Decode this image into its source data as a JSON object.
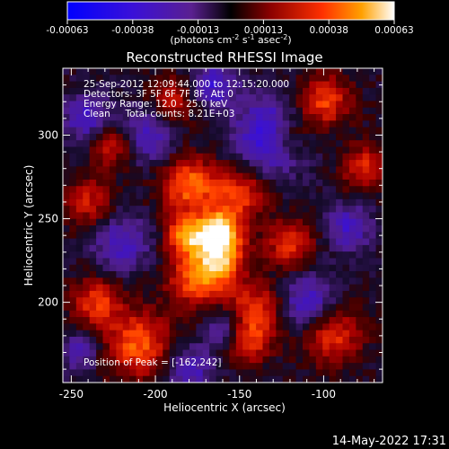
{
  "colorbar": {
    "tick_labels": [
      "-0.00063",
      "-0.00038",
      "-0.00013",
      "0.00013",
      "0.00038",
      "0.00063"
    ],
    "units": "(photons cm",
    "units_sup1": "-2",
    "units_mid": " s",
    "units_sup2": "-1",
    "units_mid2": " asec",
    "units_sup3": "-2",
    "units_end": ")",
    "range": [
      -0.00063,
      0.00063
    ]
  },
  "chart_data": {
    "type": "heatmap",
    "title": "Reconstructed RHESSI Image",
    "xlabel": "Heliocentric X (arcsec)",
    "ylabel": "Heliocentric Y (arcsec)",
    "xlim": [
      -255,
      -65
    ],
    "ylim": [
      152,
      340
    ],
    "x_ticks": [
      -250,
      -200,
      -150,
      -100
    ],
    "x_tick_labels": [
      "-250",
      "-200",
      "-150",
      "-100"
    ],
    "y_ticks": [
      200,
      250,
      300
    ],
    "y_tick_labels": [
      "200",
      "250",
      "300"
    ],
    "annotations": [
      "25-Sep-2012 12:09:44.000 to 12:15:20.000",
      "Detectors: 3F 5F 6F 7F 8F, Att 0",
      "Energy Range: 12.0 - 25.0 keV",
      "Clean     Total counts: 8.21E+03"
    ],
    "peak_label": "Position of Peak = [-162,242]",
    "peak": {
      "x": -162,
      "y": 242
    },
    "blobs": [
      {
        "x": -162,
        "y": 242,
        "amp": 1.0,
        "sigma": 9
      },
      {
        "x": -182,
        "y": 240,
        "amp": 0.75,
        "sigma": 8
      },
      {
        "x": -180,
        "y": 270,
        "amp": 0.7,
        "sigma": 12
      },
      {
        "x": -175,
        "y": 215,
        "amp": 0.7,
        "sigma": 12
      },
      {
        "x": -160,
        "y": 225,
        "amp": 0.6,
        "sigma": 10
      },
      {
        "x": -150,
        "y": 265,
        "amp": 0.55,
        "sigma": 11
      },
      {
        "x": -140,
        "y": 195,
        "amp": 0.55,
        "sigma": 12
      },
      {
        "x": -210,
        "y": 175,
        "amp": 0.65,
        "sigma": 14
      },
      {
        "x": -235,
        "y": 200,
        "amp": 0.55,
        "sigma": 10
      },
      {
        "x": -225,
        "y": 295,
        "amp": 0.5,
        "sigma": 10
      },
      {
        "x": -240,
        "y": 260,
        "amp": 0.45,
        "sigma": 10
      },
      {
        "x": -120,
        "y": 235,
        "amp": 0.55,
        "sigma": 10
      },
      {
        "x": -100,
        "y": 320,
        "amp": 0.6,
        "sigma": 11
      },
      {
        "x": -95,
        "y": 180,
        "amp": 0.55,
        "sigma": 12
      },
      {
        "x": -75,
        "y": 280,
        "amp": 0.5,
        "sigma": 10
      },
      {
        "x": -120,
        "y": 300,
        "amp": 0.5,
        "sigma": 9
      },
      {
        "x": -145,
        "y": 175,
        "amp": 0.45,
        "sigma": 9
      },
      {
        "x": -190,
        "y": 320,
        "amp": 0.45,
        "sigma": 10
      },
      {
        "x": -130,
        "y": 300,
        "amp": -0.7,
        "sigma": 15
      },
      {
        "x": -205,
        "y": 300,
        "amp": -0.5,
        "sigma": 12
      },
      {
        "x": -240,
        "y": 310,
        "amp": -0.5,
        "sigma": 10
      },
      {
        "x": -220,
        "y": 235,
        "amp": -0.45,
        "sigma": 12
      },
      {
        "x": -110,
        "y": 200,
        "amp": -0.5,
        "sigma": 12
      },
      {
        "x": -85,
        "y": 245,
        "amp": -0.45,
        "sigma": 10
      },
      {
        "x": -165,
        "y": 330,
        "amp": -0.5,
        "sigma": 10
      },
      {
        "x": -160,
        "y": 185,
        "amp": -0.4,
        "sigma": 8
      },
      {
        "x": -180,
        "y": 160,
        "amp": -0.45,
        "sigma": 10
      },
      {
        "x": -245,
        "y": 170,
        "amp": -0.4,
        "sigma": 8
      }
    ],
    "grid": false
  },
  "footer": {
    "timestamp": "14-May-2022 17:31"
  }
}
